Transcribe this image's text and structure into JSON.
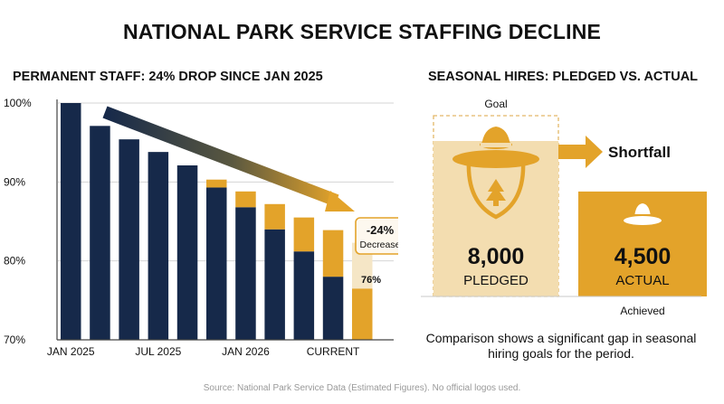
{
  "title": "NATIONAL PARK SERVICE STAFFING DECLINE",
  "source": "Source: National Park Service Data (Estimated Figures). No official logos used.",
  "colors": {
    "navy": "#16294a",
    "gold": "#e3a32a",
    "tan": "#f3ddb0",
    "arrow": "#e3a32a"
  },
  "chart_data": [
    {
      "type": "bar",
      "title": "PERMANENT STAFF: 24% DROP SINCE JAN 2025",
      "ylim": [
        70,
        100
      ],
      "yticks": [
        "100%",
        "90%",
        "80%",
        "70%"
      ],
      "ytick_values": [
        100,
        90,
        80,
        70
      ],
      "xtick_labels": [
        "JAN 2025",
        "JUL 2025",
        "JAN 2026",
        "CURRENT"
      ],
      "xtick_index": [
        0,
        3,
        6,
        9
      ],
      "grid": true,
      "series": [
        {
          "values": [
            100,
            97.1,
            95.4,
            93.8,
            92.1,
            89.3,
            86.8,
            84.0,
            81.2,
            78.0,
            76.5
          ]
        },
        {
          "values": [
            0,
            0,
            0,
            0,
            0,
            1.0,
            2.0,
            3.2,
            4.3,
            5.9,
            5.8
          ]
        }
      ],
      "annotations": {
        "callout_value": "-24%",
        "callout_label": "Decrease",
        "final_label": "76%",
        "trend_arrow": true
      }
    },
    {
      "type": "bar",
      "title": "SEASONAL HIRES: PLEDGED VS. ACTUAL",
      "categories": [
        "PLEDGED",
        "ACTUAL"
      ],
      "values": [
        8000,
        4500
      ],
      "value_labels": [
        "8,000",
        "4,500"
      ],
      "annotations": {
        "goal_label": "Goal",
        "shortfall_label": "Shortfall",
        "achieved_label": "Achieved",
        "caption": "Comparison shows a significant gap in seasonal hiring goals for the period."
      },
      "icons": [
        "ranger-hat-tree-icon",
        "ranger-hat-icon"
      ]
    }
  ]
}
